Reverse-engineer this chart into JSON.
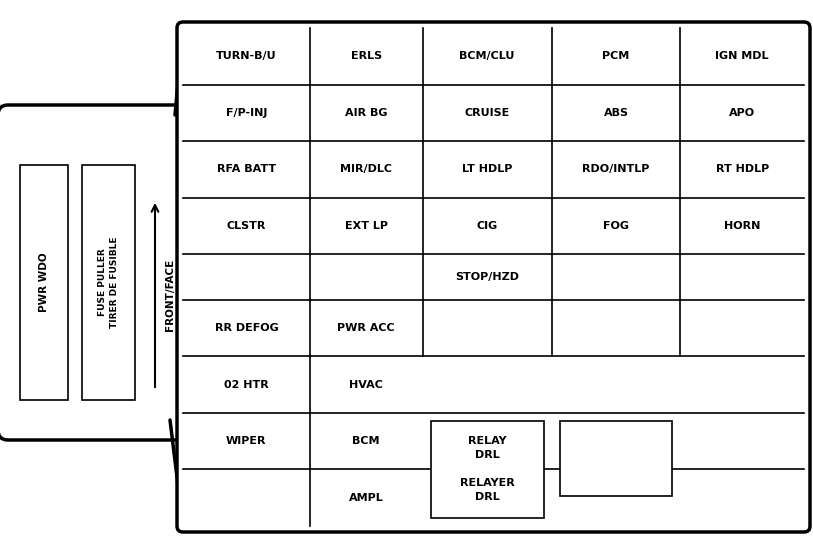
{
  "bg_color": "#ffffff",
  "line_color": "#000000",
  "fig_width": 8.13,
  "fig_height": 5.56,
  "dpi": 100,
  "cells": [
    [
      "TURN-B/U",
      "ERLS",
      "BCM/CLU",
      "PCM",
      "IGN MDL"
    ],
    [
      "F/P-INJ",
      "AIR BG",
      "CRUISE",
      "ABS",
      "APO"
    ],
    [
      "RFA BATT",
      "MIR/DLC",
      "LT HDLP",
      "RDO/INTLP",
      "RT HDLP"
    ],
    [
      "CLSTR",
      "EXT LP",
      "CIG",
      "FOG",
      "HORN"
    ],
    [
      "",
      "",
      "STOP/HZD",
      "",
      ""
    ],
    [
      "RR DEFOG",
      "PWR ACC",
      "",
      "",
      ""
    ],
    [
      "02 HTR",
      "HVAC",
      "",
      "",
      ""
    ],
    [
      "WIPER",
      "BCM",
      "",
      "",
      ""
    ],
    [
      "",
      "AMPL",
      "",
      "",
      ""
    ]
  ],
  "relay_label": "RELAY\nDRL\n\nRELAYER\nDRL",
  "pwr_wdo_label": "PWR WDO",
  "fuse_puller_label": "FUSE PULLER\nTIRER DE FUSIBLE",
  "front_face_label": "FRONT/FACE",
  "font_size_cell": 8,
  "font_size_side": 7.5,
  "font_size_relay": 8,
  "lw_outer": 2.5,
  "lw_inner": 1.2
}
